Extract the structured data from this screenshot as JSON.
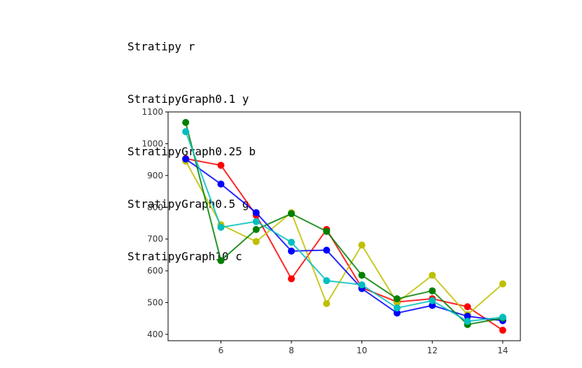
{
  "output_lines": [
    "Stratipy r",
    "StratipyGraph0.1 y",
    "StratipyGraph0.25 b",
    "StratipyGraph0.5 g",
    "StratipyGraph10 c"
  ],
  "chart_data": {
    "type": "line",
    "title": "",
    "xlabel": "",
    "ylabel": "",
    "xlim": [
      4.5,
      14.5
    ],
    "ylim": [
      380,
      1100
    ],
    "xticks": [
      6,
      8,
      10,
      12,
      14
    ],
    "yticks": [
      400,
      500,
      600,
      700,
      800,
      900,
      1000,
      1100
    ],
    "grid": false,
    "x": [
      5,
      6,
      7,
      8,
      9,
      10,
      11,
      12,
      13,
      14
    ],
    "series": [
      {
        "color": "#ff0000",
        "values": [
          953,
          932,
          775,
          575,
          730,
          547,
          502,
          512,
          487,
          413
        ]
      },
      {
        "color": "#bfbf00",
        "values": [
          945,
          745,
          692,
          783,
          497,
          681,
          500,
          586,
          462,
          559
        ]
      },
      {
        "color": "#0000ff",
        "values": [
          952,
          873,
          783,
          662,
          665,
          544,
          467,
          491,
          457,
          443
        ]
      },
      {
        "color": "#008000",
        "values": [
          1067,
          632,
          730,
          780,
          724,
          586,
          512,
          537,
          431,
          451
        ]
      },
      {
        "color": "#00bfbf",
        "values": [
          1038,
          737,
          755,
          690,
          569,
          556,
          483,
          506,
          441,
          454
        ]
      }
    ]
  }
}
